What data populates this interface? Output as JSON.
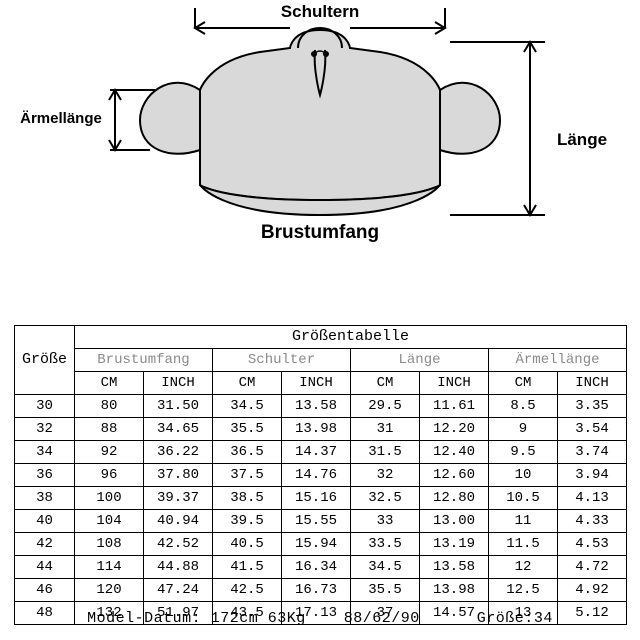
{
  "diagram": {
    "labels": {
      "shoulders": "Schultern",
      "sleeve": "Ärmellänge",
      "length": "Länge",
      "chest": "Brustumfang"
    },
    "colors": {
      "garment_fill": "#d9d9d9",
      "outline": "#000000",
      "background": "#ffffff"
    },
    "label_fontsize": 17
  },
  "table": {
    "type": "table",
    "title": "Größentabelle",
    "size_header": "Größe",
    "groups": [
      "Brustumfang",
      "Schulter",
      "Länge",
      "Ärmellänge"
    ],
    "units": [
      "CM",
      "INCH"
    ],
    "group_header_color": "#8a8a8a",
    "border_color": "#000000",
    "cell_fontsize": 14,
    "font_family": "Courier New",
    "sizes": [
      "30",
      "32",
      "34",
      "36",
      "38",
      "40",
      "42",
      "44",
      "46",
      "48"
    ],
    "data": {
      "Brustumfang": {
        "CM": [
          "80",
          "88",
          "92",
          "96",
          "100",
          "104",
          "108",
          "114",
          "120",
          "132"
        ],
        "INCH": [
          "31.50",
          "34.65",
          "36.22",
          "37.80",
          "39.37",
          "40.94",
          "42.52",
          "44.88",
          "47.24",
          "51.97"
        ]
      },
      "Schulter": {
        "CM": [
          "34.5",
          "35.5",
          "36.5",
          "37.5",
          "38.5",
          "39.5",
          "40.5",
          "41.5",
          "42.5",
          "43.5"
        ],
        "INCH": [
          "13.58",
          "13.98",
          "14.37",
          "14.76",
          "15.16",
          "15.55",
          "15.94",
          "16.34",
          "16.73",
          "17.13"
        ]
      },
      "Länge": {
        "CM": [
          "29.5",
          "31",
          "31.5",
          "32",
          "32.5",
          "33",
          "33.5",
          "34.5",
          "35.5",
          "37"
        ],
        "INCH": [
          "11.61",
          "12.20",
          "12.40",
          "12.60",
          "12.80",
          "13.00",
          "13.19",
          "13.58",
          "13.98",
          "14.57"
        ]
      },
      "Ärmellänge": {
        "CM": [
          "8.5",
          "9",
          "9.5",
          "10",
          "10.5",
          "11",
          "11.5",
          "12",
          "12.5",
          "13"
        ],
        "INCH": [
          "3.35",
          "3.54",
          "3.74",
          "3.94",
          "4.13",
          "4.33",
          "4.53",
          "4.72",
          "4.92",
          "5.12"
        ]
      }
    }
  },
  "footer": {
    "height_label": "Model-Datum:",
    "height_value": "172cm",
    "weight_value": "63Kg",
    "measures_value": "88/62/90",
    "size_label": "Größe:",
    "size_value": "34"
  }
}
